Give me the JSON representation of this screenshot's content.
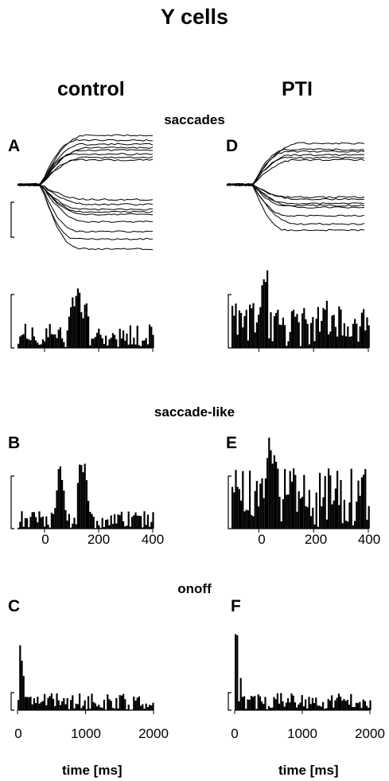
{
  "figure": {
    "title": "Y cells",
    "columns": [
      "control",
      "PTI"
    ],
    "sections": [
      "saccades",
      "saccade-like",
      "onoff"
    ],
    "panel_labels": [
      "A",
      "B",
      "C",
      "D",
      "E",
      "F"
    ],
    "xlabel": "time [ms]"
  },
  "ticks": {
    "saccade_x": [
      "0",
      "200",
      "400"
    ],
    "onoff_x": [
      "0",
      "1000",
      "2000"
    ]
  },
  "chart_data": [
    {
      "panel": "A",
      "column": "control",
      "type": "line",
      "description_of_marks": "eye position traces during saccades",
      "x": [
        -100,
        400
      ],
      "traces_end_levels": [
        1.0,
        0.9,
        0.82,
        0.75,
        0.7,
        0.62,
        0.55,
        0.5,
        -0.3,
        -0.4,
        -0.5,
        -0.55,
        -0.6,
        -0.75,
        -0.95,
        -1.1,
        -1.3
      ]
    },
    {
      "panel": "A",
      "column": "control",
      "type": "bar",
      "xlim": [
        -100,
        400
      ],
      "peaks": [
        {
          "x": 120,
          "y": 1.0
        },
        {
          "x": 100,
          "y": 0.7
        },
        {
          "x": 150,
          "y": 0.6
        }
      ],
      "baseline_level": 0.2
    },
    {
      "panel": "D",
      "column": "PTI",
      "type": "line",
      "x": [
        -100,
        400
      ],
      "traces_end_levels": [
        1.0,
        0.85,
        0.8,
        0.72,
        0.65,
        0.6,
        -0.3,
        -0.35,
        -0.45,
        -0.5,
        -0.55,
        -0.75,
        -0.95,
        -1.1
      ]
    },
    {
      "panel": "D",
      "column": "PTI",
      "type": "bar",
      "xlim": [
        -100,
        400
      ],
      "peaks": [
        {
          "x": 25,
          "y": 1.0
        },
        {
          "x": 15,
          "y": 0.85
        }
      ],
      "baseline_level": 0.35
    },
    {
      "panel": "B",
      "column": "control",
      "type": "bar",
      "xlim": [
        -100,
        400
      ],
      "peaks": [
        {
          "x": 55,
          "y": 0.9
        },
        {
          "x": 130,
          "y": 1.0
        },
        {
          "x": 145,
          "y": 0.9
        }
      ],
      "baseline_level": 0.15
    },
    {
      "panel": "E",
      "column": "PTI",
      "type": "bar",
      "xlim": [
        -100,
        400
      ],
      "peaks": [
        {
          "x": 35,
          "y": 1.0
        },
        {
          "x": 55,
          "y": 0.85
        }
      ],
      "baseline_level": 0.35
    },
    {
      "panel": "C",
      "column": "control",
      "type": "bar",
      "xlim": [
        0,
        2000
      ],
      "peaks": [
        {
          "x": 10,
          "y": 1.0
        }
      ],
      "baseline_level": 0.12
    },
    {
      "panel": "F",
      "column": "PTI",
      "type": "bar",
      "xlim": [
        0,
        2000
      ],
      "peaks": [
        {
          "x": 10,
          "y": 1.0
        }
      ],
      "baseline_level": 0.12
    }
  ]
}
